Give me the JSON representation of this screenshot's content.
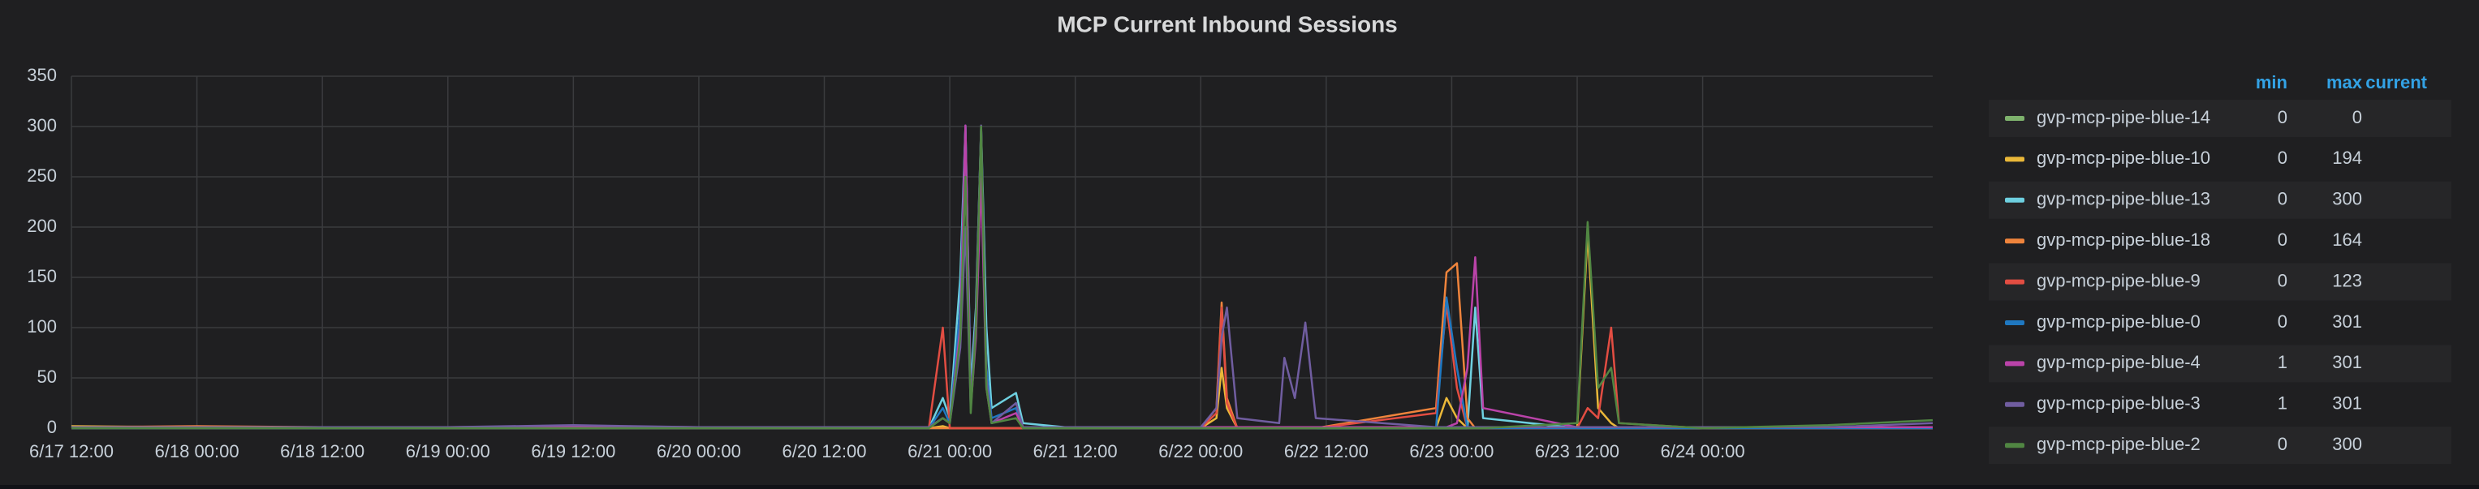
{
  "chart_data": {
    "type": "line",
    "title": "MCP Current Inbound Sessions",
    "x": [
      "6/17 12:00",
      "6/18 00:00",
      "6/18 12:00",
      "6/19 00:00",
      "6/19 12:00",
      "6/20 00:00",
      "6/20 12:00",
      "6/20 22:00",
      "6/20 23:20",
      "6/21 00:00",
      "6/21 01:00",
      "6/21 01:30",
      "6/21 02:00",
      "6/21 02:30",
      "6/21 03:00",
      "6/21 03:30",
      "6/21 04:00",
      "6/21 06:20",
      "6/21 07:00",
      "6/21 12:00",
      "6/22 00:00",
      "6/22 01:30",
      "6/22 02:00",
      "6/22 02:30",
      "6/22 03:30",
      "6/22 07:30",
      "6/22 08:00",
      "6/22 09:00",
      "6/22 10:00",
      "6/22 11:00",
      "6/22 22:30",
      "6/22 23:30",
      "6/23 00:30",
      "6/23 01:30",
      "6/23 02:15",
      "6/23 03:00",
      "6/23 12:00",
      "6/23 13:00",
      "6/23 14:00",
      "6/23 15:15",
      "6/23 16:00",
      "6/24 00:00",
      "6/24 12:00",
      "6/24 22:00"
    ],
    "xlim": [
      "6/17 12:00",
      "6/24 22:00"
    ],
    "xticks": [
      "6/17 12:00",
      "6/18 00:00",
      "6/18 12:00",
      "6/19 00:00",
      "6/19 12:00",
      "6/20 00:00",
      "6/20 12:00",
      "6/21 00:00",
      "6/21 12:00",
      "6/22 00:00",
      "6/22 12:00",
      "6/23 00:00",
      "6/23 12:00",
      "6/24 00:00"
    ],
    "ylim": [
      0,
      350
    ],
    "yticks": [
      0,
      50,
      100,
      150,
      200,
      250,
      300,
      350
    ],
    "grid": true,
    "legend_columns": [
      "min",
      "max",
      "current"
    ],
    "series": [
      {
        "name": "gvp-mcp-pipe-blue-14",
        "color": "#7eb26d",
        "min": 0,
        "max": 0,
        "values": [
          0,
          0,
          0,
          0,
          0,
          0,
          0,
          0,
          0,
          0,
          0,
          0,
          0,
          0,
          0,
          0,
          0,
          0,
          0,
          0,
          0,
          0,
          0,
          0,
          0,
          0,
          0,
          0,
          0,
          0,
          0,
          0,
          0,
          0,
          0,
          0,
          0,
          0,
          0,
          0,
          0,
          0,
          0,
          0
        ]
      },
      {
        "name": "gvp-mcp-pipe-blue-10",
        "color": "#eab839",
        "min": 0,
        "max": 194,
        "values": [
          2,
          1,
          0,
          1,
          0,
          0,
          0,
          0,
          2,
          0,
          0,
          0,
          0,
          0,
          0,
          0,
          0,
          0,
          0,
          0,
          0,
          10,
          60,
          20,
          0,
          0,
          0,
          0,
          0,
          0,
          0,
          30,
          10,
          0,
          0,
          0,
          0,
          194,
          20,
          5,
          0,
          0,
          0,
          0
        ]
      },
      {
        "name": "gvp-mcp-pipe-blue-13",
        "color": "#6ed0e0",
        "min": 0,
        "max": 300,
        "values": [
          0,
          0,
          0,
          0,
          0,
          0,
          0,
          0,
          30,
          10,
          150,
          300,
          40,
          120,
          298,
          100,
          20,
          35,
          5,
          0,
          0,
          0,
          0,
          0,
          0,
          0,
          0,
          0,
          0,
          0,
          0,
          0,
          0,
          0,
          120,
          10,
          0,
          0,
          0,
          0,
          0,
          0,
          0,
          0
        ]
      },
      {
        "name": "gvp-mcp-pipe-blue-18",
        "color": "#ef843c",
        "min": 0,
        "max": 164,
        "values": [
          1,
          2,
          1,
          0,
          0,
          0,
          0,
          0,
          0,
          0,
          0,
          0,
          0,
          0,
          0,
          0,
          0,
          0,
          0,
          0,
          0,
          20,
          125,
          30,
          0,
          0,
          0,
          0,
          0,
          0,
          20,
          155,
          164,
          10,
          0,
          0,
          0,
          0,
          0,
          0,
          0,
          0,
          0,
          0
        ]
      },
      {
        "name": "gvp-mcp-pipe-blue-9",
        "color": "#e24d42",
        "min": 0,
        "max": 123,
        "values": [
          0,
          0,
          0,
          0,
          0,
          0,
          0,
          0,
          100,
          0,
          0,
          0,
          0,
          0,
          0,
          0,
          0,
          0,
          0,
          0,
          0,
          15,
          120,
          25,
          0,
          0,
          0,
          0,
          0,
          0,
          15,
          123,
          40,
          0,
          0,
          0,
          0,
          20,
          10,
          100,
          5,
          0,
          0,
          0
        ]
      },
      {
        "name": "gvp-mcp-pipe-blue-0",
        "color": "#1f78c1",
        "min": 0,
        "max": 301,
        "values": [
          0,
          0,
          0,
          0,
          0,
          0,
          0,
          0,
          20,
          5,
          120,
          301,
          30,
          100,
          280,
          60,
          10,
          20,
          0,
          0,
          0,
          0,
          0,
          0,
          0,
          0,
          0,
          0,
          0,
          0,
          0,
          130,
          60,
          0,
          0,
          0,
          0,
          0,
          0,
          0,
          0,
          0,
          0,
          0
        ]
      },
      {
        "name": "gvp-mcp-pipe-blue-4",
        "color": "#ba43a9",
        "min": 1,
        "max": 301,
        "values": [
          1,
          1,
          1,
          1,
          2,
          1,
          1,
          1,
          10,
          5,
          100,
          301,
          20,
          90,
          250,
          40,
          5,
          15,
          1,
          1,
          1,
          1,
          1,
          1,
          1,
          1,
          1,
          1,
          1,
          1,
          1,
          1,
          5,
          60,
          170,
          20,
          1,
          1,
          1,
          1,
          1,
          1,
          1,
          1
        ]
      },
      {
        "name": "gvp-mcp-pipe-blue-3",
        "color": "#705da0",
        "min": 1,
        "max": 301,
        "values": [
          1,
          1,
          1,
          1,
          3,
          1,
          1,
          1,
          10,
          5,
          80,
          200,
          20,
          110,
          301,
          50,
          5,
          25,
          1,
          1,
          1,
          20,
          90,
          120,
          10,
          5,
          70,
          30,
          105,
          10,
          1,
          1,
          1,
          1,
          1,
          1,
          1,
          1,
          1,
          1,
          1,
          1,
          1,
          5
        ]
      },
      {
        "name": "gvp-mcp-pipe-blue-2",
        "color": "#508642",
        "min": 0,
        "max": 300,
        "values": [
          0,
          0,
          0,
          0,
          0,
          0,
          0,
          0,
          10,
          5,
          90,
          250,
          15,
          100,
          300,
          40,
          5,
          10,
          0,
          0,
          0,
          0,
          0,
          0,
          0,
          0,
          0,
          0,
          0,
          0,
          0,
          0,
          0,
          0,
          0,
          0,
          5,
          205,
          40,
          60,
          5,
          0,
          3,
          8
        ]
      }
    ]
  }
}
